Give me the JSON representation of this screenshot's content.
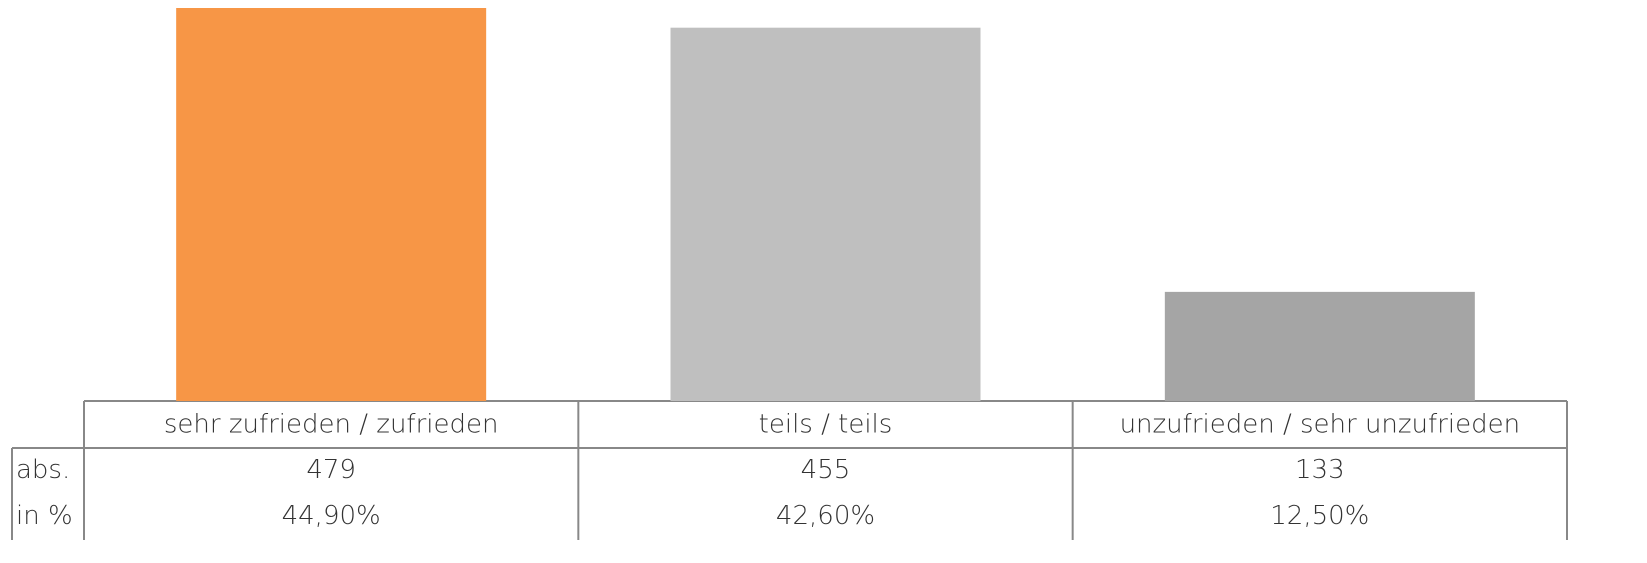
{
  "chart_data": {
    "type": "bar",
    "categories": [
      "sehr zufrieden / zufrieden",
      "teils / teils",
      "unzufrieden / sehr unzufrieden"
    ],
    "colors": [
      "#f79646",
      "#bfbfbf",
      "#a5a5a5"
    ],
    "series": [
      {
        "name": "abs.",
        "values": [
          479,
          455,
          133
        ]
      },
      {
        "name": "in %",
        "values": [
          44.9,
          42.6,
          12.5
        ],
        "value_labels": [
          "44,90%",
          "42,60%",
          "12,50%"
        ]
      }
    ]
  }
}
